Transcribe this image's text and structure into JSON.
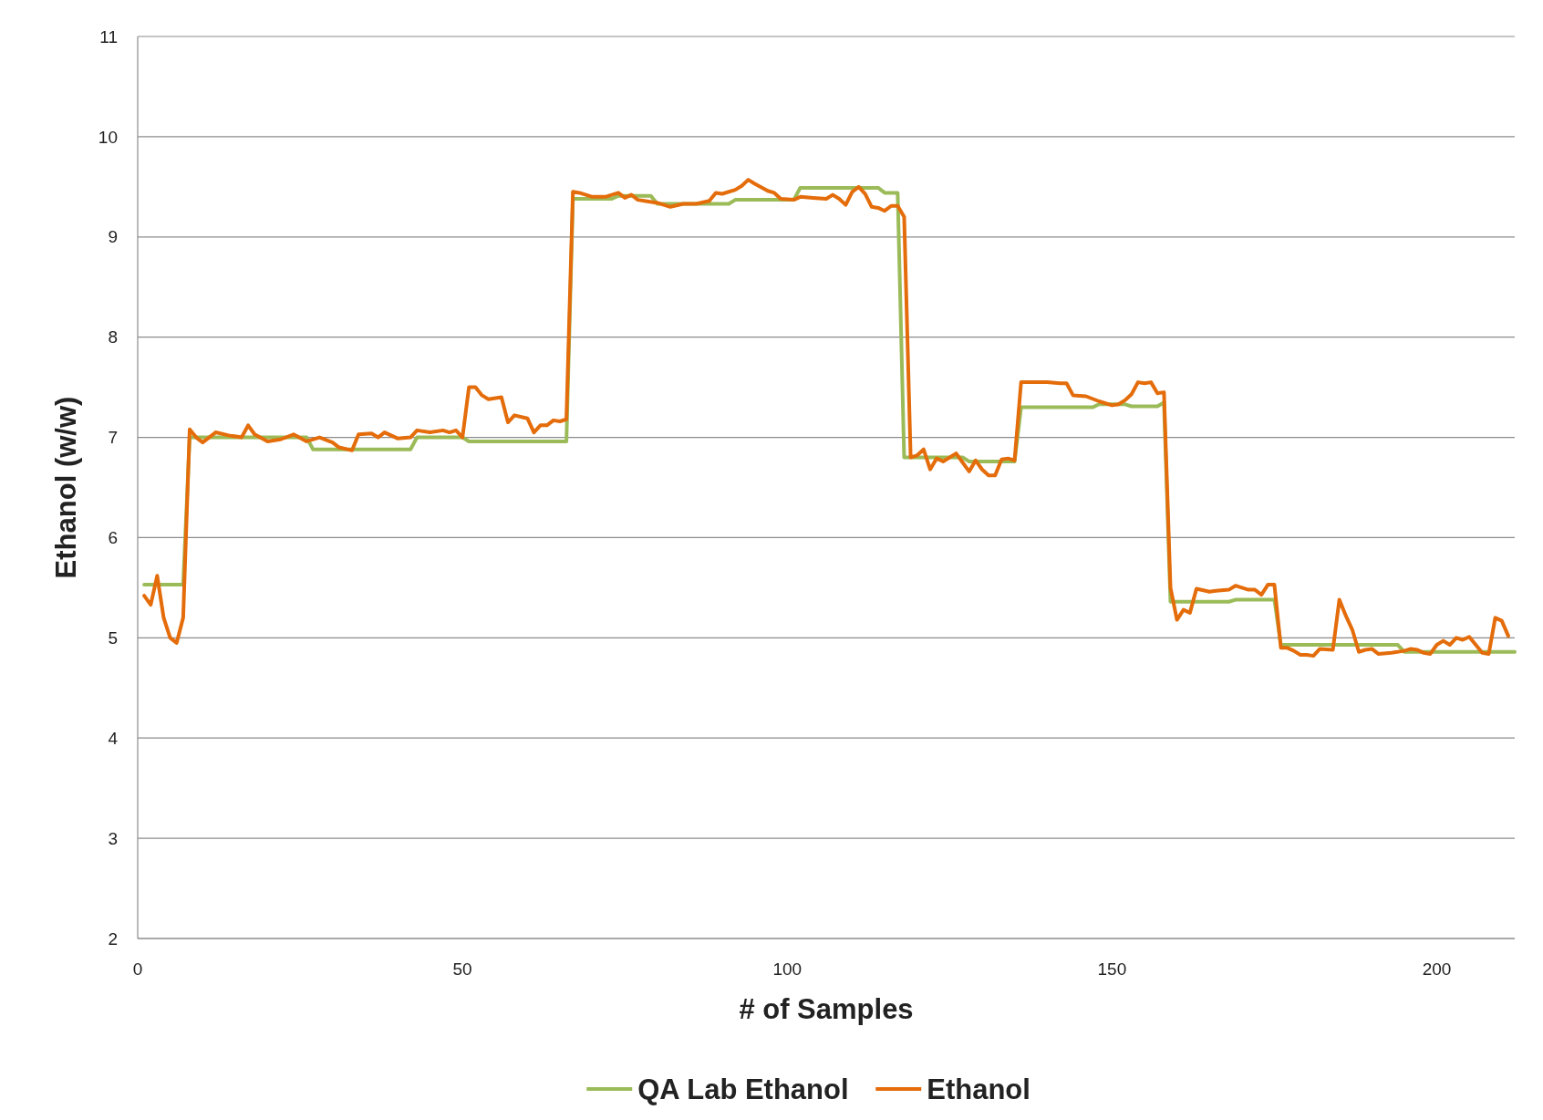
{
  "chart_data": {
    "type": "line",
    "xlabel": "# of Samples",
    "ylabel": "Ethanol (w/w)",
    "xlim": [
      0,
      212
    ],
    "ylim": [
      2,
      11
    ],
    "xticks": [
      0,
      50,
      100,
      150,
      200
    ],
    "yticks": [
      2,
      3,
      4,
      5,
      6,
      7,
      8,
      9,
      10,
      11
    ],
    "grid": "y",
    "legend": "bottom",
    "marker": "none",
    "line_style": "solid",
    "series": [
      {
        "name": "QA Lab Ethanol",
        "color": "#9bbb59",
        "x": [
          1,
          7,
          8,
          26,
          27,
          42,
          43,
          50,
          51,
          66,
          67,
          73,
          74,
          79,
          80,
          91,
          92,
          101,
          102,
          114,
          115,
          117,
          118,
          127,
          128,
          135,
          136,
          147,
          148,
          152,
          153,
          157,
          158,
          159,
          168,
          169,
          174,
          175,
          176,
          194,
          195,
          212
        ],
        "values": [
          5.53,
          5.53,
          7.0,
          7.0,
          6.88,
          6.88,
          7.0,
          7.0,
          6.96,
          6.96,
          9.38,
          9.38,
          9.41,
          9.41,
          9.33,
          9.33,
          9.37,
          9.37,
          9.49,
          9.49,
          9.44,
          9.44,
          6.8,
          6.8,
          6.76,
          6.76,
          7.3,
          7.3,
          7.33,
          7.33,
          7.31,
          7.31,
          7.35,
          5.36,
          5.36,
          5.38,
          5.38,
          5.38,
          4.93,
          4.93,
          4.86,
          4.86
        ]
      },
      {
        "name": "Ethanol",
        "color": "#e46c0a",
        "x": [
          1,
          2,
          3,
          4,
          5,
          6,
          7,
          8,
          9,
          10,
          12,
          14,
          16,
          17,
          18,
          20,
          22,
          24,
          26,
          28,
          30,
          31,
          33,
          34,
          36,
          37,
          38,
          40,
          42,
          43,
          45,
          47,
          48,
          49,
          50,
          51,
          52,
          53,
          54,
          56,
          57,
          58,
          60,
          61,
          62,
          63,
          64,
          65,
          66,
          67,
          68,
          70,
          72,
          74,
          75,
          76,
          77,
          78,
          80,
          82,
          84,
          86,
          88,
          89,
          90,
          92,
          93,
          94,
          95,
          97,
          98,
          99,
          101,
          102,
          104,
          106,
          107,
          108,
          109,
          110,
          111,
          112,
          113,
          114,
          115,
          116,
          117,
          118,
          119,
          120,
          121,
          122,
          123,
          124,
          126,
          127,
          128,
          129,
          130,
          131,
          132,
          133,
          134,
          135,
          136,
          138,
          140,
          142,
          143,
          144,
          146,
          148,
          150,
          151,
          152,
          153,
          154,
          155,
          156,
          157,
          158,
          159,
          160,
          161,
          162,
          163,
          165,
          166,
          168,
          169,
          171,
          172,
          173,
          174,
          175,
          176,
          177,
          178,
          179,
          180,
          181,
          182,
          184,
          185,
          186,
          187,
          188,
          189,
          190,
          191,
          193,
          195,
          196,
          197,
          198,
          199,
          200,
          201,
          202,
          203,
          204,
          205,
          206,
          207,
          208,
          209,
          210,
          211
        ],
        "values": [
          5.42,
          5.33,
          5.62,
          5.2,
          5.0,
          4.95,
          5.2,
          7.08,
          7.0,
          6.95,
          7.05,
          7.02,
          7.0,
          7.12,
          7.03,
          6.96,
          6.98,
          7.03,
          6.96,
          7.0,
          6.95,
          6.9,
          6.87,
          7.03,
          7.04,
          7.0,
          7.05,
          6.99,
          7.0,
          7.07,
          7.05,
          7.07,
          7.05,
          7.07,
          7.0,
          7.5,
          7.5,
          7.42,
          7.38,
          7.4,
          7.15,
          7.22,
          7.19,
          7.05,
          7.12,
          7.12,
          7.17,
          7.16,
          7.18,
          9.45,
          9.44,
          9.4,
          9.4,
          9.44,
          9.39,
          9.42,
          9.37,
          9.36,
          9.34,
          9.3,
          9.33,
          9.33,
          9.36,
          9.44,
          9.43,
          9.47,
          9.51,
          9.57,
          9.53,
          9.46,
          9.44,
          9.38,
          9.37,
          9.4,
          9.39,
          9.38,
          9.42,
          9.38,
          9.32,
          9.45,
          9.5,
          9.43,
          9.3,
          9.29,
          9.26,
          9.31,
          9.31,
          9.2,
          6.8,
          6.82,
          6.88,
          6.68,
          6.79,
          6.76,
          6.84,
          6.75,
          6.66,
          6.77,
          6.68,
          6.62,
          6.62,
          6.78,
          6.79,
          6.77,
          7.55,
          7.55,
          7.55,
          7.54,
          7.54,
          7.42,
          7.41,
          7.36,
          7.32,
          7.33,
          7.37,
          7.43,
          7.55,
          7.54,
          7.55,
          7.44,
          7.45,
          5.5,
          5.18,
          5.28,
          5.25,
          5.49,
          5.46,
          5.47,
          5.48,
          5.52,
          5.48,
          5.48,
          5.43,
          5.53,
          5.53,
          4.9,
          4.9,
          4.87,
          4.83,
          4.83,
          4.82,
          4.89,
          4.88,
          5.38,
          5.22,
          5.08,
          4.86,
          4.88,
          4.89,
          4.84,
          4.85,
          4.87,
          4.89,
          4.88,
          4.85,
          4.84,
          4.93,
          4.97,
          4.93,
          5.0,
          4.98,
          5.01,
          4.93,
          4.85,
          4.84,
          5.2,
          5.17,
          5.02
        ]
      }
    ]
  }
}
